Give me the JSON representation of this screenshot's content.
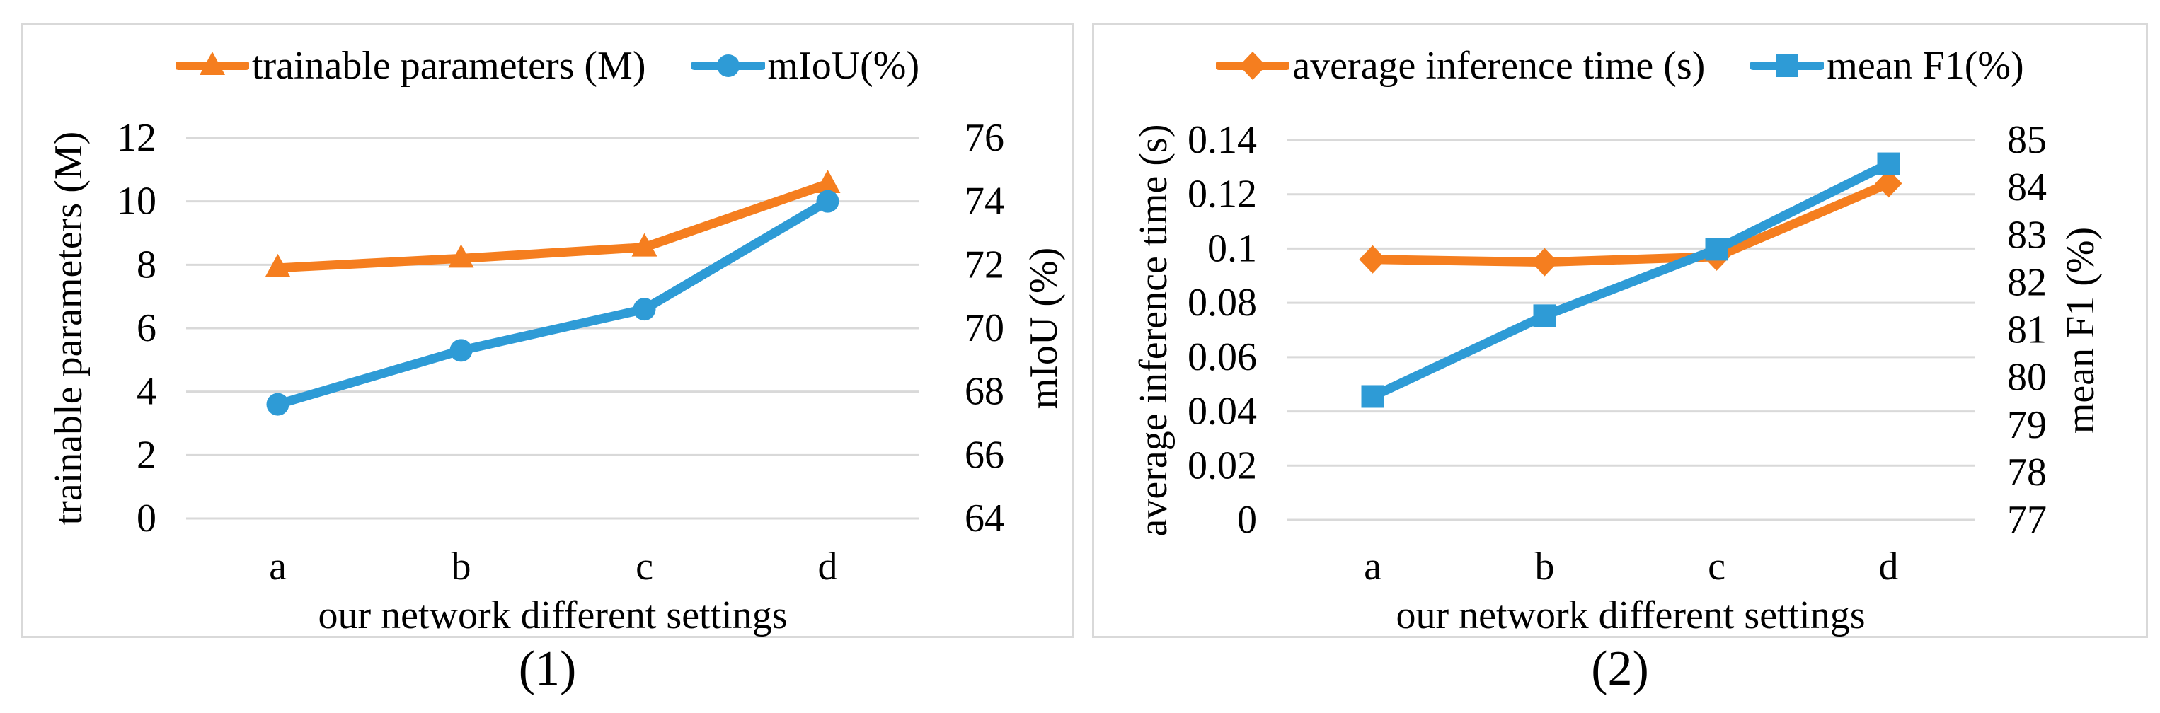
{
  "figure": {
    "background": "#ffffff",
    "colors": {
      "orange": "#F57E1F",
      "blue": "#2E9BD6",
      "gridline": "#D9D9D9",
      "panel_border": "#D9D9D9",
      "text": "#000000"
    }
  },
  "chart_data": [
    {
      "type": "line",
      "caption": "(1)",
      "grid": true,
      "legend_position": "top",
      "x": {
        "title": "our network different settings",
        "categories": [
          "a",
          "b",
          "c",
          "d"
        ]
      },
      "left_axis": {
        "title": "trainable parameters (M)",
        "range": [
          0,
          12
        ],
        "ticks": [
          [
            0,
            "0"
          ],
          [
            2,
            "2"
          ],
          [
            4,
            "4"
          ],
          [
            6,
            "6"
          ],
          [
            8,
            "8"
          ],
          [
            10,
            "10"
          ],
          [
            12,
            "12"
          ]
        ]
      },
      "right_axis": {
        "title": "mIoU (%)",
        "range": [
          64,
          76
        ],
        "ticks": [
          [
            64,
            "64"
          ],
          [
            66,
            "66"
          ],
          [
            68,
            "68"
          ],
          [
            70,
            "70"
          ],
          [
            72,
            "72"
          ],
          [
            74,
            "74"
          ],
          [
            76,
            "76"
          ]
        ]
      },
      "series": [
        {
          "name": "trainable parameters (M)",
          "axis": "left",
          "color": "#F57E1F",
          "marker": "triangle",
          "values": [
            7.9,
            8.2,
            8.55,
            10.55
          ]
        },
        {
          "name": "mIoU(%)",
          "axis": "right",
          "color": "#2E9BD6",
          "marker": "circle",
          "values": [
            67.6,
            69.3,
            70.6,
            74.0
          ]
        }
      ]
    },
    {
      "type": "line",
      "caption": "(2)",
      "grid": true,
      "legend_position": "top",
      "x": {
        "title": "our network different settings",
        "categories": [
          "a",
          "b",
          "c",
          "d"
        ]
      },
      "left_axis": {
        "title": "average inference time (s)",
        "range": [
          0,
          0.14
        ],
        "ticks": [
          [
            0,
            "0"
          ],
          [
            0.02,
            "0.02"
          ],
          [
            0.04,
            "0.04"
          ],
          [
            0.06,
            "0.06"
          ],
          [
            0.08,
            "0.08"
          ],
          [
            0.1,
            "0.1"
          ],
          [
            0.12,
            "0.12"
          ],
          [
            0.14,
            "0.14"
          ]
        ]
      },
      "right_axis": {
        "title": "mean F1 (%)",
        "range": [
          77,
          85
        ],
        "ticks": [
          [
            77,
            "77"
          ],
          [
            78,
            "78"
          ],
          [
            79,
            "79"
          ],
          [
            80,
            "80"
          ],
          [
            81,
            "81"
          ],
          [
            82,
            "82"
          ],
          [
            83,
            "83"
          ],
          [
            84,
            "84"
          ],
          [
            85,
            "85"
          ]
        ]
      },
      "series": [
        {
          "name": "average inference time (s)",
          "axis": "left",
          "color": "#F57E1F",
          "marker": "diamond",
          "values": [
            0.096,
            0.095,
            0.097,
            0.124
          ]
        },
        {
          "name": "mean F1(%)",
          "axis": "right",
          "color": "#2E9BD6",
          "marker": "square",
          "values": [
            79.6,
            81.3,
            82.7,
            84.5
          ]
        }
      ]
    }
  ]
}
